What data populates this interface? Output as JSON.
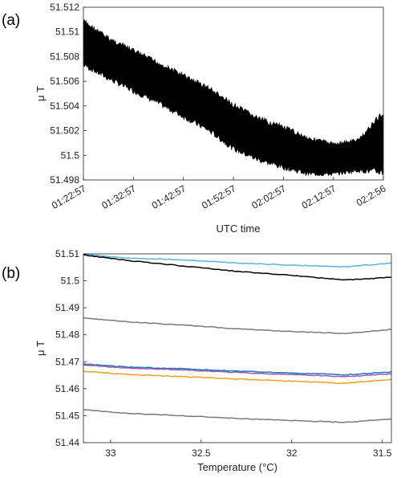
{
  "chart_data": [
    {
      "type": "area",
      "panel_label": "(a)",
      "xlabel": "UTC time",
      "ylabel": "μ T",
      "ylim": [
        51.498,
        51.512
      ],
      "yticks": [
        "51.498",
        "51.5",
        "51.502",
        "51.504",
        "51.506",
        "51.508",
        "51.51",
        "51.512"
      ],
      "xticks": [
        "01:22:57",
        "01:32:57",
        "01:42:57",
        "01:52:57",
        "02:02:57",
        "02:12:57",
        "02:2:56"
      ],
      "grid": false,
      "color": "#000000",
      "series": [
        {
          "x": [
            "01:22:57",
            "01:27:57",
            "01:32:57",
            "01:37:57",
            "01:42:57",
            "01:47:57",
            "01:52:57",
            "01:57:57",
            "02:02:57",
            "02:07:57",
            "02:12:57",
            "02:17:57",
            "02:22:56"
          ],
          "upper": [
            51.5111,
            51.5097,
            51.5087,
            51.5077,
            51.5067,
            51.5057,
            51.5043,
            51.5032,
            51.5025,
            51.5016,
            51.5011,
            51.5014,
            51.5038
          ],
          "lower": [
            51.5071,
            51.506,
            51.505,
            51.504,
            51.5029,
            51.5018,
            51.5003,
            51.4994,
            51.4988,
            51.4983,
            51.4983,
            51.4986,
            51.4983
          ]
        }
      ]
    },
    {
      "type": "line",
      "panel_label": "(b)",
      "xlabel": "Temperature (°C)",
      "ylabel": "μ T",
      "xlim": [
        33.15,
        31.45
      ],
      "x_reversed": true,
      "ylim": [
        51.44,
        51.51
      ],
      "yticks": [
        "51.44",
        "51.45",
        "51.46",
        "51.47",
        "51.48",
        "51.49",
        "51.5",
        "51.51"
      ],
      "xticks": [
        "33",
        "32.5",
        "32",
        "31.5"
      ],
      "grid": false,
      "x": [
        33.15,
        32.9,
        32.6,
        32.3,
        32.0,
        31.7,
        31.45
      ],
      "series": [
        {
          "color": "#5ab4e0",
          "values": [
            51.5098,
            51.5084,
            51.5078,
            51.5066,
            51.5058,
            51.5052,
            51.5066
          ]
        },
        {
          "color": "#000000",
          "values": [
            51.5096,
            51.5075,
            51.5055,
            51.5035,
            51.502,
            51.5003,
            51.5013
          ]
        },
        {
          "color": "#7a7a7a",
          "values": [
            51.4862,
            51.4848,
            51.4836,
            51.4822,
            51.4812,
            51.4805,
            51.482
          ]
        },
        {
          "color": "#1f77b4",
          "values": [
            51.4692,
            51.468,
            51.4674,
            51.4665,
            51.4658,
            51.4652,
            51.4662
          ]
        },
        {
          "color": "#9b59b6",
          "values": [
            51.4688,
            51.4676,
            51.467,
            51.466,
            51.4652,
            51.4645,
            51.4655
          ]
        },
        {
          "color": "#e8a317",
          "values": [
            51.4665,
            51.4652,
            51.4645,
            51.4636,
            51.4628,
            51.462,
            51.4635
          ]
        },
        {
          "color": "#7a7a7a",
          "values": [
            51.4522,
            51.4508,
            51.45,
            51.449,
            51.4482,
            51.4475,
            51.4488
          ]
        }
      ]
    }
  ]
}
